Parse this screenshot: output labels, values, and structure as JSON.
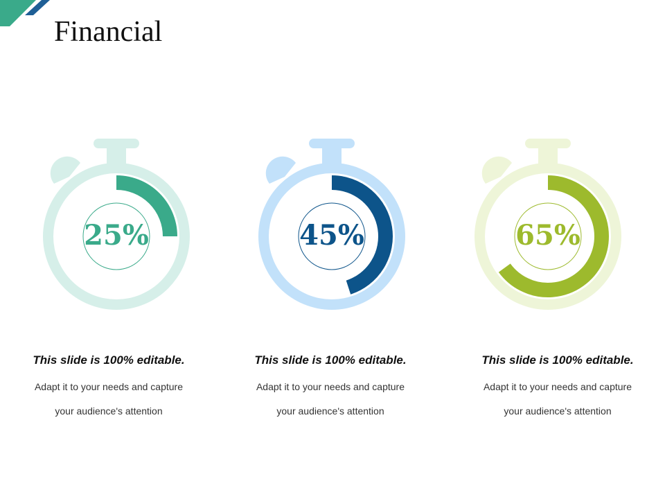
{
  "title": "Financial",
  "colors": {
    "corner_green": "#3aaa8a",
    "corner_blue": "#1f5f96"
  },
  "timers": [
    {
      "percent": 0.25,
      "label": "25%",
      "accent": "#3aaa8a",
      "light": "#d6efe9"
    },
    {
      "percent": 0.45,
      "label": "45%",
      "accent": "#0d548a",
      "light": "#c2e1fa"
    },
    {
      "percent": 0.65,
      "label": "65%",
      "accent": "#9dba2d",
      "light": "#eef5d8"
    }
  ],
  "captions": [
    {
      "heading": "This slide is 100% editable.",
      "line1": "Adapt it to your needs and capture",
      "line2": "your audience's attention"
    },
    {
      "heading": "This slide is 100% editable.",
      "line1": "Adapt it to your needs and capture",
      "line2": "your audience's attention"
    },
    {
      "heading": "This slide is 100% editable.",
      "line1": "Adapt it to your needs and capture",
      "line2": "your audience's attention"
    }
  ]
}
